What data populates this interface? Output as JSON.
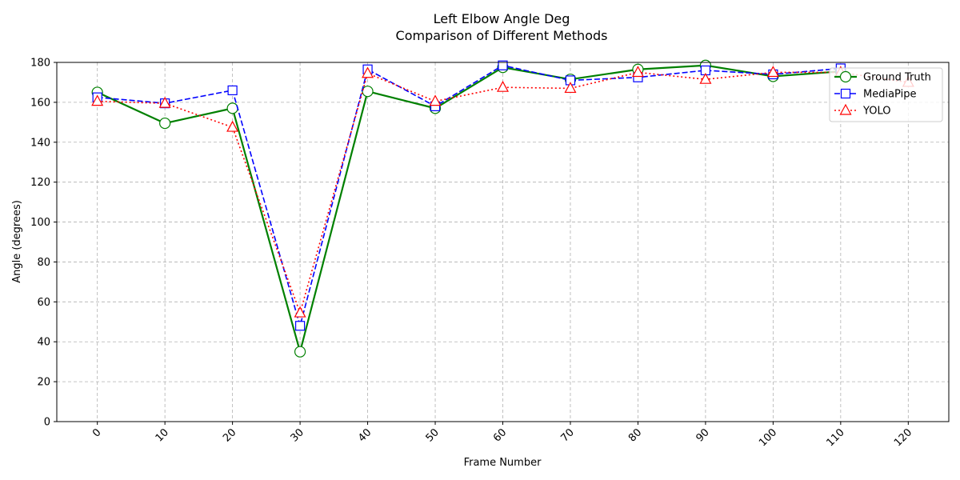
{
  "chart_data": {
    "type": "line",
    "title": "Left Elbow Angle Deg",
    "subtitle": "Comparison of Different Methods",
    "xlabel": "Frame Number",
    "ylabel": "Angle (degrees)",
    "xlim": [
      -6,
      126
    ],
    "ylim": [
      0,
      180
    ],
    "x_ticks": [
      0,
      10,
      20,
      30,
      40,
      50,
      60,
      70,
      80,
      90,
      100,
      110,
      120
    ],
    "y_ticks": [
      0,
      20,
      40,
      60,
      80,
      100,
      120,
      140,
      160,
      180
    ],
    "grid": true,
    "legend_position": "top-right",
    "series": [
      {
        "name": "Ground Truth",
        "color": "#008000",
        "style": "solid",
        "marker": "circle",
        "x": [
          0,
          10,
          20,
          30,
          40,
          50,
          60,
          70,
          80,
          90,
          100,
          110
        ],
        "values": [
          165,
          149.5,
          157,
          35,
          165.5,
          157,
          177.5,
          171.5,
          176.5,
          178.5,
          173,
          175.5
        ]
      },
      {
        "name": "MediaPipe",
        "color": "#0000ff",
        "style": "dashed",
        "marker": "square",
        "x": [
          0,
          10,
          20,
          30,
          40,
          50,
          60,
          70,
          80,
          90,
          100,
          110
        ],
        "values": [
          162.5,
          159.5,
          166,
          48,
          176.5,
          158,
          178.5,
          171,
          172.5,
          176,
          174,
          177
        ]
      },
      {
        "name": "YOLO",
        "color": "#ff0000",
        "style": "dotted",
        "marker": "triangle",
        "x": [
          0,
          10,
          20,
          30,
          40,
          50,
          60,
          70,
          80,
          90,
          100,
          110,
          120
        ],
        "values": [
          160.5,
          159.5,
          147.5,
          54.5,
          174.5,
          160.5,
          167.5,
          167,
          175,
          171.5,
          175,
          175,
          170
        ]
      }
    ]
  }
}
